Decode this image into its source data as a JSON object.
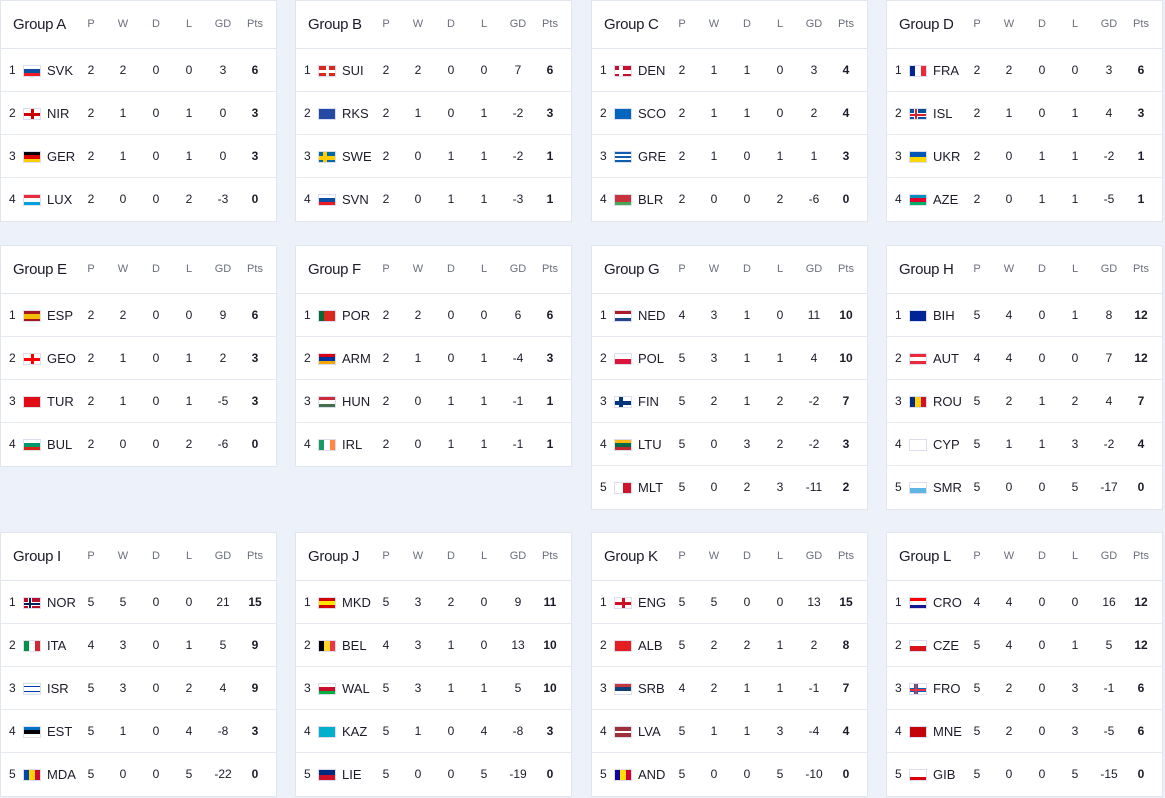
{
  "headers": {
    "p": "P",
    "w": "W",
    "d": "D",
    "l": "L",
    "gd": "GD",
    "pts": "Pts"
  },
  "groups": [
    {
      "name": "Group A",
      "rows": [
        [
          "1",
          "SVK",
          "2",
          "2",
          "0",
          "0",
          "3",
          "6"
        ],
        [
          "2",
          "NIR",
          "2",
          "1",
          "0",
          "1",
          "0",
          "3"
        ],
        [
          "3",
          "GER",
          "2",
          "1",
          "0",
          "1",
          "0",
          "3"
        ],
        [
          "4",
          "LUX",
          "2",
          "0",
          "0",
          "2",
          "-3",
          "0"
        ]
      ]
    },
    {
      "name": "Group B",
      "rows": [
        [
          "1",
          "SUI",
          "2",
          "2",
          "0",
          "0",
          "7",
          "6"
        ],
        [
          "2",
          "RKS",
          "2",
          "1",
          "0",
          "1",
          "-2",
          "3"
        ],
        [
          "3",
          "SWE",
          "2",
          "0",
          "1",
          "1",
          "-2",
          "1"
        ],
        [
          "4",
          "SVN",
          "2",
          "0",
          "1",
          "1",
          "-3",
          "1"
        ]
      ]
    },
    {
      "name": "Group C",
      "rows": [
        [
          "1",
          "DEN",
          "2",
          "1",
          "1",
          "0",
          "3",
          "4"
        ],
        [
          "2",
          "SCO",
          "2",
          "1",
          "1",
          "0",
          "2",
          "4"
        ],
        [
          "3",
          "GRE",
          "2",
          "1",
          "0",
          "1",
          "1",
          "3"
        ],
        [
          "4",
          "BLR",
          "2",
          "0",
          "0",
          "2",
          "-6",
          "0"
        ]
      ]
    },
    {
      "name": "Group D",
      "rows": [
        [
          "1",
          "FRA",
          "2",
          "2",
          "0",
          "0",
          "3",
          "6"
        ],
        [
          "2",
          "ISL",
          "2",
          "1",
          "0",
          "1",
          "4",
          "3"
        ],
        [
          "3",
          "UKR",
          "2",
          "0",
          "1",
          "1",
          "-2",
          "1"
        ],
        [
          "4",
          "AZE",
          "2",
          "0",
          "1",
          "1",
          "-5",
          "1"
        ]
      ]
    },
    {
      "name": "Group E",
      "rows": [
        [
          "1",
          "ESP",
          "2",
          "2",
          "0",
          "0",
          "9",
          "6"
        ],
        [
          "2",
          "GEO",
          "2",
          "1",
          "0",
          "1",
          "2",
          "3"
        ],
        [
          "3",
          "TUR",
          "2",
          "1",
          "0",
          "1",
          "-5",
          "3"
        ],
        [
          "4",
          "BUL",
          "2",
          "0",
          "0",
          "2",
          "-6",
          "0"
        ]
      ]
    },
    {
      "name": "Group F",
      "rows": [
        [
          "1",
          "POR",
          "2",
          "2",
          "0",
          "0",
          "6",
          "6"
        ],
        [
          "2",
          "ARM",
          "2",
          "1",
          "0",
          "1",
          "-4",
          "3"
        ],
        [
          "3",
          "HUN",
          "2",
          "0",
          "1",
          "1",
          "-1",
          "1"
        ],
        [
          "4",
          "IRL",
          "2",
          "0",
          "1",
          "1",
          "-1",
          "1"
        ]
      ]
    },
    {
      "name": "Group G",
      "rows": [
        [
          "1",
          "NED",
          "4",
          "3",
          "1",
          "0",
          "11",
          "10"
        ],
        [
          "2",
          "POL",
          "5",
          "3",
          "1",
          "1",
          "4",
          "10"
        ],
        [
          "3",
          "FIN",
          "5",
          "2",
          "1",
          "2",
          "-2",
          "7"
        ],
        [
          "4",
          "LTU",
          "5",
          "0",
          "3",
          "2",
          "-2",
          "3"
        ],
        [
          "5",
          "MLT",
          "5",
          "0",
          "2",
          "3",
          "-11",
          "2"
        ]
      ]
    },
    {
      "name": "Group H",
      "rows": [
        [
          "1",
          "BIH",
          "5",
          "4",
          "0",
          "1",
          "8",
          "12"
        ],
        [
          "2",
          "AUT",
          "4",
          "4",
          "0",
          "0",
          "7",
          "12"
        ],
        [
          "3",
          "ROU",
          "5",
          "2",
          "1",
          "2",
          "4",
          "7"
        ],
        [
          "4",
          "CYP",
          "5",
          "1",
          "1",
          "3",
          "-2",
          "4"
        ],
        [
          "5",
          "SMR",
          "5",
          "0",
          "0",
          "5",
          "-17",
          "0"
        ]
      ]
    },
    {
      "name": "Group I",
      "rows": [
        [
          "1",
          "NOR",
          "5",
          "5",
          "0",
          "0",
          "21",
          "15"
        ],
        [
          "2",
          "ITA",
          "4",
          "3",
          "0",
          "1",
          "5",
          "9"
        ],
        [
          "3",
          "ISR",
          "5",
          "3",
          "0",
          "2",
          "4",
          "9"
        ],
        [
          "4",
          "EST",
          "5",
          "1",
          "0",
          "4",
          "-8",
          "3"
        ],
        [
          "5",
          "MDA",
          "5",
          "0",
          "0",
          "5",
          "-22",
          "0"
        ]
      ]
    },
    {
      "name": "Group J",
      "rows": [
        [
          "1",
          "MKD",
          "5",
          "3",
          "2",
          "0",
          "9",
          "11"
        ],
        [
          "2",
          "BEL",
          "4",
          "3",
          "1",
          "0",
          "13",
          "10"
        ],
        [
          "3",
          "WAL",
          "5",
          "3",
          "1",
          "1",
          "5",
          "10"
        ],
        [
          "4",
          "KAZ",
          "5",
          "1",
          "0",
          "4",
          "-8",
          "3"
        ],
        [
          "5",
          "LIE",
          "5",
          "0",
          "0",
          "5",
          "-19",
          "0"
        ]
      ]
    },
    {
      "name": "Group K",
      "rows": [
        [
          "1",
          "ENG",
          "5",
          "5",
          "0",
          "0",
          "13",
          "15"
        ],
        [
          "2",
          "ALB",
          "5",
          "2",
          "2",
          "1",
          "2",
          "8"
        ],
        [
          "3",
          "SRB",
          "4",
          "2",
          "1",
          "1",
          "-1",
          "7"
        ],
        [
          "4",
          "LVA",
          "5",
          "1",
          "1",
          "3",
          "-4",
          "4"
        ],
        [
          "5",
          "AND",
          "5",
          "0",
          "0",
          "5",
          "-10",
          "0"
        ]
      ]
    },
    {
      "name": "Group L",
      "rows": [
        [
          "1",
          "CRO",
          "4",
          "4",
          "0",
          "0",
          "16",
          "12"
        ],
        [
          "2",
          "CZE",
          "5",
          "4",
          "0",
          "1",
          "5",
          "12"
        ],
        [
          "3",
          "FRO",
          "5",
          "2",
          "0",
          "3",
          "-1",
          "6"
        ],
        [
          "4",
          "MNE",
          "5",
          "2",
          "0",
          "3",
          "-5",
          "6"
        ],
        [
          "5",
          "GIB",
          "5",
          "0",
          "0",
          "5",
          "-15",
          "0"
        ]
      ]
    }
  ],
  "flags": {
    "SVK": {
      "t": "h",
      "c": [
        "#fff",
        "#0b4ea2",
        "#ee1c25"
      ]
    },
    "NIR": {
      "t": "cross",
      "c": [
        "#fff",
        "#cc0000"
      ]
    },
    "GER": {
      "t": "h",
      "c": [
        "#000",
        "#dd0000",
        "#ffce00"
      ]
    },
    "LUX": {
      "t": "h",
      "c": [
        "#ed2939",
        "#fff",
        "#00a1de"
      ]
    },
    "SUI": {
      "t": "cross",
      "c": [
        "#da291c",
        "#fff"
      ]
    },
    "RKS": {
      "t": "h",
      "c": [
        "#244aa5"
      ]
    },
    "SWE": {
      "t": "nordic",
      "c": [
        "#006aa7",
        "#fecc00",
        "#fecc00"
      ]
    },
    "SVN": {
      "t": "h",
      "c": [
        "#fff",
        "#0b4ea2",
        "#ed1c24"
      ]
    },
    "DEN": {
      "t": "nordic",
      "c": [
        "#c8102e",
        "#fff",
        "#fff"
      ]
    },
    "SCO": {
      "t": "h",
      "c": [
        "#0065bd"
      ]
    },
    "GRE": {
      "t": "h",
      "c": [
        "#0d5eaf",
        "#fff",
        "#0d5eaf",
        "#fff",
        "#0d5eaf"
      ]
    },
    "BLR": {
      "t": "h",
      "c": [
        "#c8313e",
        "#c8313e",
        "#4aa657"
      ]
    },
    "FRA": {
      "t": "v",
      "c": [
        "#002395",
        "#fff",
        "#ed2939"
      ]
    },
    "ISL": {
      "t": "nordic",
      "c": [
        "#02529c",
        "#fff",
        "#dc1e35"
      ]
    },
    "UKR": {
      "t": "h",
      "c": [
        "#0057b7",
        "#ffd700"
      ]
    },
    "AZE": {
      "t": "h",
      "c": [
        "#0092bc",
        "#e4002b",
        "#00af66"
      ]
    },
    "ESP": {
      "t": "h",
      "c": [
        "#aa151b",
        "#f1bf00",
        "#f1bf00",
        "#aa151b"
      ]
    },
    "GEO": {
      "t": "cross",
      "c": [
        "#fff",
        "#ff0000"
      ]
    },
    "TUR": {
      "t": "h",
      "c": [
        "#e30a17"
      ]
    },
    "BUL": {
      "t": "h",
      "c": [
        "#fff",
        "#00966e",
        "#d62612"
      ]
    },
    "POR": {
      "t": "v",
      "c": [
        "#046a38",
        "#da291c",
        "#da291c"
      ]
    },
    "ARM": {
      "t": "h",
      "c": [
        "#d90012",
        "#0033a0",
        "#f2a800"
      ]
    },
    "HUN": {
      "t": "h",
      "c": [
        "#cd2a3e",
        "#fff",
        "#436f4d"
      ]
    },
    "IRL": {
      "t": "v",
      "c": [
        "#169b62",
        "#fff",
        "#ff883e"
      ]
    },
    "NED": {
      "t": "h",
      "c": [
        "#ae1c28",
        "#fff",
        "#21468b"
      ]
    },
    "POL": {
      "t": "h",
      "c": [
        "#fff",
        "#dc143c"
      ]
    },
    "FIN": {
      "t": "nordic",
      "c": [
        "#fff",
        "#003580",
        "#003580"
      ]
    },
    "LTU": {
      "t": "h",
      "c": [
        "#fdb913",
        "#006a44",
        "#c1272d"
      ]
    },
    "MLT": {
      "t": "v",
      "c": [
        "#fff",
        "#cf142b"
      ]
    },
    "BIH": {
      "t": "h",
      "c": [
        "#002395"
      ]
    },
    "AUT": {
      "t": "h",
      "c": [
        "#ed2939",
        "#fff",
        "#ed2939"
      ]
    },
    "ROU": {
      "t": "v",
      "c": [
        "#002b7f",
        "#fcd116",
        "#ce1126"
      ]
    },
    "CYP": {
      "t": "h",
      "c": [
        "#fff"
      ]
    },
    "SMR": {
      "t": "h",
      "c": [
        "#fff",
        "#5eb6e4"
      ]
    },
    "NOR": {
      "t": "nordic",
      "c": [
        "#ba0c2f",
        "#fff",
        "#00205b"
      ]
    },
    "ITA": {
      "t": "v",
      "c": [
        "#009246",
        "#fff",
        "#ce2b37"
      ]
    },
    "ISR": {
      "t": "h",
      "c": [
        "#fff",
        "#0038b8",
        "#fff",
        "#fff",
        "#0038b8",
        "#fff"
      ]
    },
    "EST": {
      "t": "h",
      "c": [
        "#0072ce",
        "#000",
        "#fff"
      ]
    },
    "MDA": {
      "t": "v",
      "c": [
        "#0046ae",
        "#ffd200",
        "#cc092f"
      ]
    },
    "MKD": {
      "t": "h",
      "c": [
        "#d20000",
        "#ffe600",
        "#d20000"
      ]
    },
    "BEL": {
      "t": "v",
      "c": [
        "#000",
        "#fdda24",
        "#ef3340"
      ]
    },
    "WAL": {
      "t": "h",
      "c": [
        "#fff",
        "#c8102e",
        "#00b140"
      ]
    },
    "KAZ": {
      "t": "h",
      "c": [
        "#00afca"
      ]
    },
    "LIE": {
      "t": "h",
      "c": [
        "#002b7f",
        "#ce1126"
      ]
    },
    "ENG": {
      "t": "cross",
      "c": [
        "#fff",
        "#ce1124"
      ]
    },
    "ALB": {
      "t": "h",
      "c": [
        "#e41e20"
      ]
    },
    "SRB": {
      "t": "h",
      "c": [
        "#c6363c",
        "#0c4076",
        "#fff"
      ]
    },
    "LVA": {
      "t": "h",
      "c": [
        "#9e3039",
        "#9e3039",
        "#fff",
        "#9e3039",
        "#9e3039"
      ]
    },
    "AND": {
      "t": "v",
      "c": [
        "#10069f",
        "#fedf00",
        "#d50032"
      ]
    },
    "CRO": {
      "t": "h",
      "c": [
        "#ff0000",
        "#fff",
        "#171796"
      ]
    },
    "CZE": {
      "t": "h",
      "c": [
        "#fff",
        "#d7141a"
      ]
    },
    "FRO": {
      "t": "nordic",
      "c": [
        "#fff",
        "#0065bd",
        "#ef303e"
      ]
    },
    "MNE": {
      "t": "h",
      "c": [
        "#c40308"
      ]
    },
    "GIB": {
      "t": "h",
      "c": [
        "#fff",
        "#fff",
        "#da000c"
      ]
    }
  }
}
